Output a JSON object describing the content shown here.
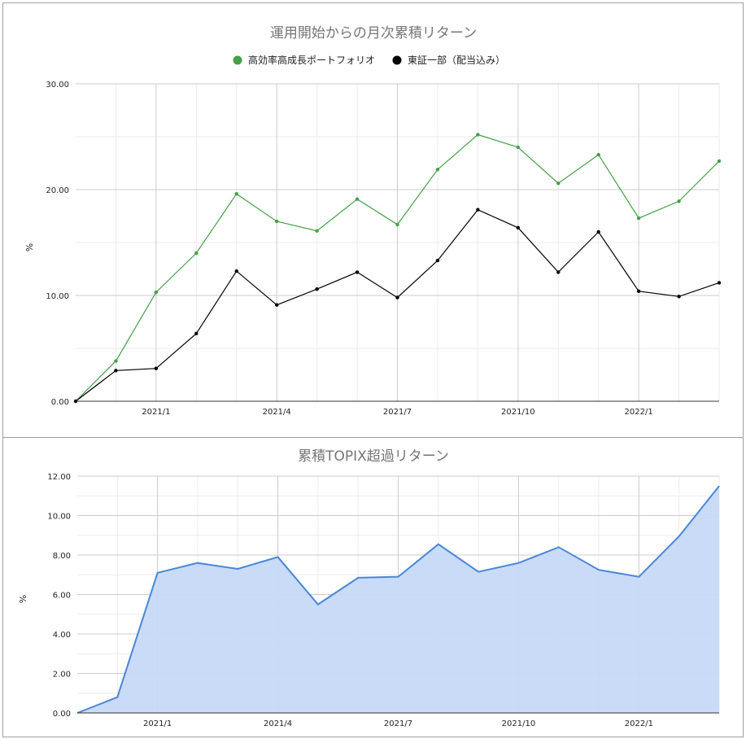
{
  "chart_data": [
    {
      "type": "line",
      "title": "運用開始からの月次累積リターン",
      "ylabel": "%",
      "ylim": [
        0,
        30
      ],
      "yticks": [
        "0.00",
        "10.00",
        "20.00",
        "30.00"
      ],
      "x_tick_labels": [
        "2021/1",
        "2021/4",
        "2021/7",
        "2021/10",
        "2022/1"
      ],
      "legend_position": "top",
      "grid": true,
      "series": [
        {
          "name": "高効率高成長ポートフォリオ",
          "color": "#43a047",
          "values": [
            0.0,
            3.8,
            10.3,
            14.0,
            19.6,
            17.0,
            16.1,
            19.1,
            16.7,
            21.9,
            25.2,
            24.0,
            20.6,
            23.3,
            17.3,
            18.9,
            22.7
          ]
        },
        {
          "name": "東証一部（配当込み）",
          "color": "#000000",
          "values": [
            0.0,
            2.9,
            3.1,
            6.4,
            12.3,
            9.1,
            10.6,
            12.2,
            9.8,
            13.3,
            18.1,
            16.4,
            12.2,
            16.0,
            10.4,
            9.9,
            11.2
          ]
        }
      ]
    },
    {
      "type": "area",
      "title": "累積TOPIX超過リターン",
      "ylabel": "%",
      "ylim": [
        0,
        12
      ],
      "yticks": [
        "0.00",
        "2.00",
        "4.00",
        "6.00",
        "8.00",
        "10.00",
        "12.00"
      ],
      "x_tick_labels": [
        "2021/1",
        "2021/4",
        "2021/7",
        "2021/10",
        "2022/1"
      ],
      "grid": true,
      "series": [
        {
          "color": "#4a86d8",
          "fill": "#c6d9f7",
          "values": [
            0.0,
            0.8,
            7.1,
            7.6,
            7.3,
            7.9,
            5.5,
            6.85,
            6.9,
            8.55,
            7.15,
            7.6,
            8.4,
            7.25,
            6.9,
            8.95,
            11.5
          ]
        }
      ]
    }
  ]
}
